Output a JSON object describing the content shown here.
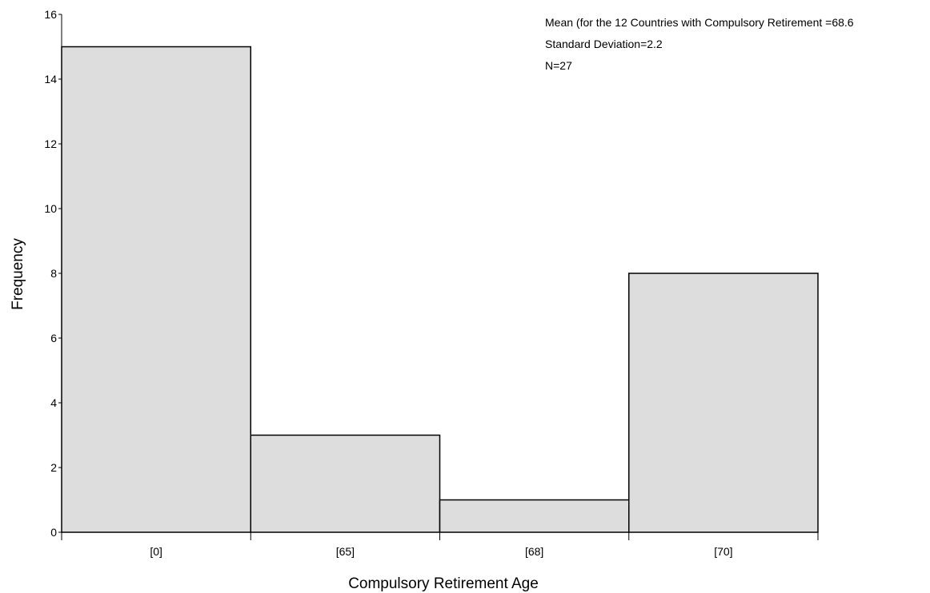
{
  "chart_data": {
    "type": "bar",
    "title": "",
    "xlabel": "Compulsory Retirement Age",
    "ylabel": "Frequency",
    "categories": [
      "[0]",
      "[65]",
      "[68]",
      "[70]"
    ],
    "values": [
      15,
      3,
      1,
      8
    ],
    "ylim": [
      0,
      16
    ],
    "yticks": [
      0,
      2,
      4,
      6,
      8,
      10,
      12,
      14,
      16
    ],
    "grid": false,
    "legend": "none",
    "bar_color": "#dddddd",
    "edge_color": "#000000",
    "annotations": [
      "Mean (for the 12 Countries with Compulsory Retirement =68.6",
      "Standard Deviation=2.2",
      "N=27"
    ]
  }
}
